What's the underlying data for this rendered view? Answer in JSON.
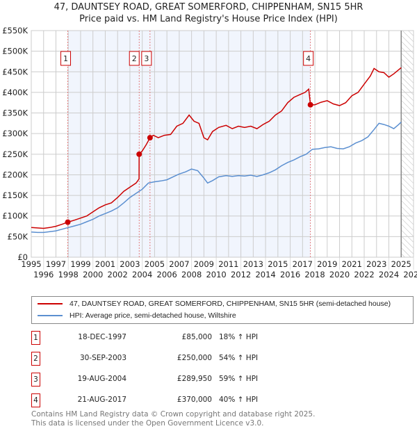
{
  "chart_data": {
    "type": "line",
    "title": "47, DAUNTSEY ROAD, GREAT SOMERFORD, CHIPPENHAM, SN15 5HR",
    "subtitle": "Price paid vs. HM Land Registry's House Price Index (HPI)",
    "xlim": [
      1995,
      2026
    ],
    "ylim": [
      0,
      550000
    ],
    "x_ticks": [
      "1995",
      "1996",
      "1997",
      "1998",
      "1999",
      "2000",
      "2001",
      "2002",
      "2003",
      "2004",
      "2005",
      "2006",
      "2007",
      "2008",
      "2009",
      "2010",
      "2011",
      "2012",
      "2013",
      "2014",
      "2015",
      "2016",
      "2017",
      "2018",
      "2019",
      "2020",
      "2021",
      "2022",
      "2023",
      "2024",
      "2025",
      "2026"
    ],
    "y_ticks": [
      "£0",
      "£50K",
      "£100K",
      "£150K",
      "£200K",
      "£250K",
      "£300K",
      "£350K",
      "£400K",
      "£450K",
      "£500K",
      "£550K"
    ],
    "y_tick_values": [
      0,
      50000,
      100000,
      150000,
      200000,
      250000,
      300000,
      350000,
      400000,
      450000,
      500000,
      550000
    ],
    "grid": true,
    "forecast_start": 2025.0,
    "series": [
      {
        "name": "47, DAUNTSEY ROAD, GREAT SOMERFORD, CHIPPENHAM, SN15 5HR (semi-detached house)",
        "color": "#cc0000",
        "x": [
          1995,
          1995.5,
          1996,
          1996.5,
          1997,
          1997.5,
          1997.96,
          1998.5,
          1999,
          1999.5,
          2000,
          2000.5,
          2001,
          2001.5,
          2002,
          2002.5,
          2003,
          2003.5,
          2003.74,
          2003.75,
          2004,
          2004.3,
          2004.63,
          2004.9,
          2005.3,
          2005.8,
          2006.3,
          2006.8,
          2007.3,
          2007.8,
          2008.2,
          2008.6,
          2009.0,
          2009.3,
          2009.7,
          2010.2,
          2010.8,
          2011.3,
          2011.8,
          2012.3,
          2012.8,
          2013.3,
          2013.8,
          2014.3,
          2014.8,
          2015.3,
          2015.8,
          2016.3,
          2016.8,
          2017.2,
          2017.5,
          2017.64,
          2018,
          2018.5,
          2019,
          2019.5,
          2020,
          2020.5,
          2021,
          2021.5,
          2022,
          2022.5,
          2022.8,
          2023.2,
          2023.6,
          2024,
          2024.4,
          2024.8,
          2025.0
        ],
        "y": [
          72000,
          71000,
          70000,
          72000,
          75000,
          80000,
          85000,
          90000,
          95000,
          100000,
          110000,
          120000,
          127000,
          132000,
          145000,
          160000,
          170000,
          180000,
          190000,
          250000,
          258000,
          272000,
          289950,
          296000,
          290000,
          296000,
          298000,
          318000,
          325000,
          345000,
          330000,
          325000,
          290000,
          285000,
          305000,
          315000,
          320000,
          312000,
          318000,
          315000,
          318000,
          312000,
          322000,
          330000,
          345000,
          355000,
          375000,
          388000,
          395000,
          400000,
          408000,
          370000,
          370000,
          376000,
          380000,
          372000,
          368000,
          375000,
          392000,
          400000,
          420000,
          440000,
          458000,
          450000,
          448000,
          437000,
          445000,
          455000,
          460000
        ]
      },
      {
        "name": "HPI: Average price, semi-detached house, Wiltshire",
        "color": "#5b8fd0",
        "x": [
          1995,
          1995.5,
          1996,
          1996.5,
          1997,
          1997.5,
          1998,
          1998.5,
          1999,
          1999.5,
          2000,
          2000.5,
          2001,
          2001.5,
          2002,
          2002.5,
          2003,
          2003.5,
          2004,
          2004.5,
          2005,
          2005.5,
          2006,
          2006.5,
          2007,
          2007.5,
          2008,
          2008.5,
          2009,
          2009.3,
          2009.7,
          2010.2,
          2010.8,
          2011.3,
          2011.8,
          2012.3,
          2012.8,
          2013.3,
          2013.8,
          2014.3,
          2014.8,
          2015.3,
          2015.8,
          2016.3,
          2016.8,
          2017.3,
          2017.8,
          2018.3,
          2018.8,
          2019.3,
          2019.8,
          2020.3,
          2020.8,
          2021.3,
          2021.8,
          2022.3,
          2022.8,
          2023.2,
          2023.6,
          2024,
          2024.4,
          2024.8,
          2025.0
        ],
        "y": [
          61000,
          60000,
          60000,
          62000,
          64000,
          68000,
          72000,
          76000,
          80000,
          86000,
          92000,
          100000,
          106000,
          112000,
          120000,
          132000,
          145000,
          155000,
          165000,
          180000,
          183000,
          185000,
          188000,
          195000,
          202000,
          207000,
          214000,
          210000,
          192000,
          180000,
          186000,
          195000,
          198000,
          196000,
          198000,
          197000,
          199000,
          196000,
          200000,
          205000,
          212000,
          222000,
          230000,
          236000,
          244000,
          250000,
          262000,
          263000,
          266000,
          268000,
          264000,
          263000,
          268000,
          277000,
          283000,
          292000,
          310000,
          325000,
          322000,
          318000,
          312000,
          322000,
          328000
        ]
      }
    ],
    "sales": [
      {
        "label": "1",
        "x": 1997.96,
        "y": 85000
      },
      {
        "label": "2",
        "x": 2003.75,
        "y": 250000
      },
      {
        "label": "3",
        "x": 2004.63,
        "y": 289950
      },
      {
        "label": "4",
        "x": 2017.64,
        "y": 370000
      }
    ]
  },
  "legend": {
    "property": "47, DAUNTSEY ROAD, GREAT SOMERFORD, CHIPPENHAM, SN15 5HR (semi-detached house)",
    "hpi": "HPI: Average price, semi-detached house, Wiltshire"
  },
  "transactions": [
    {
      "num": "1",
      "date": "18-DEC-1997",
      "price": "£85,000",
      "hpi": "18% ↑ HPI"
    },
    {
      "num": "2",
      "date": "30-SEP-2003",
      "price": "£250,000",
      "hpi": "54% ↑ HPI"
    },
    {
      "num": "3",
      "date": "19-AUG-2004",
      "price": "£289,950",
      "hpi": "59% ↑ HPI"
    },
    {
      "num": "4",
      "date": "21-AUG-2017",
      "price": "£370,000",
      "hpi": "40% ↑ HPI"
    }
  ],
  "footer": {
    "line1": "Contains HM Land Registry data © Crown copyright and database right 2025.",
    "line2": "This data is licensed under the Open Government Licence v3.0."
  }
}
